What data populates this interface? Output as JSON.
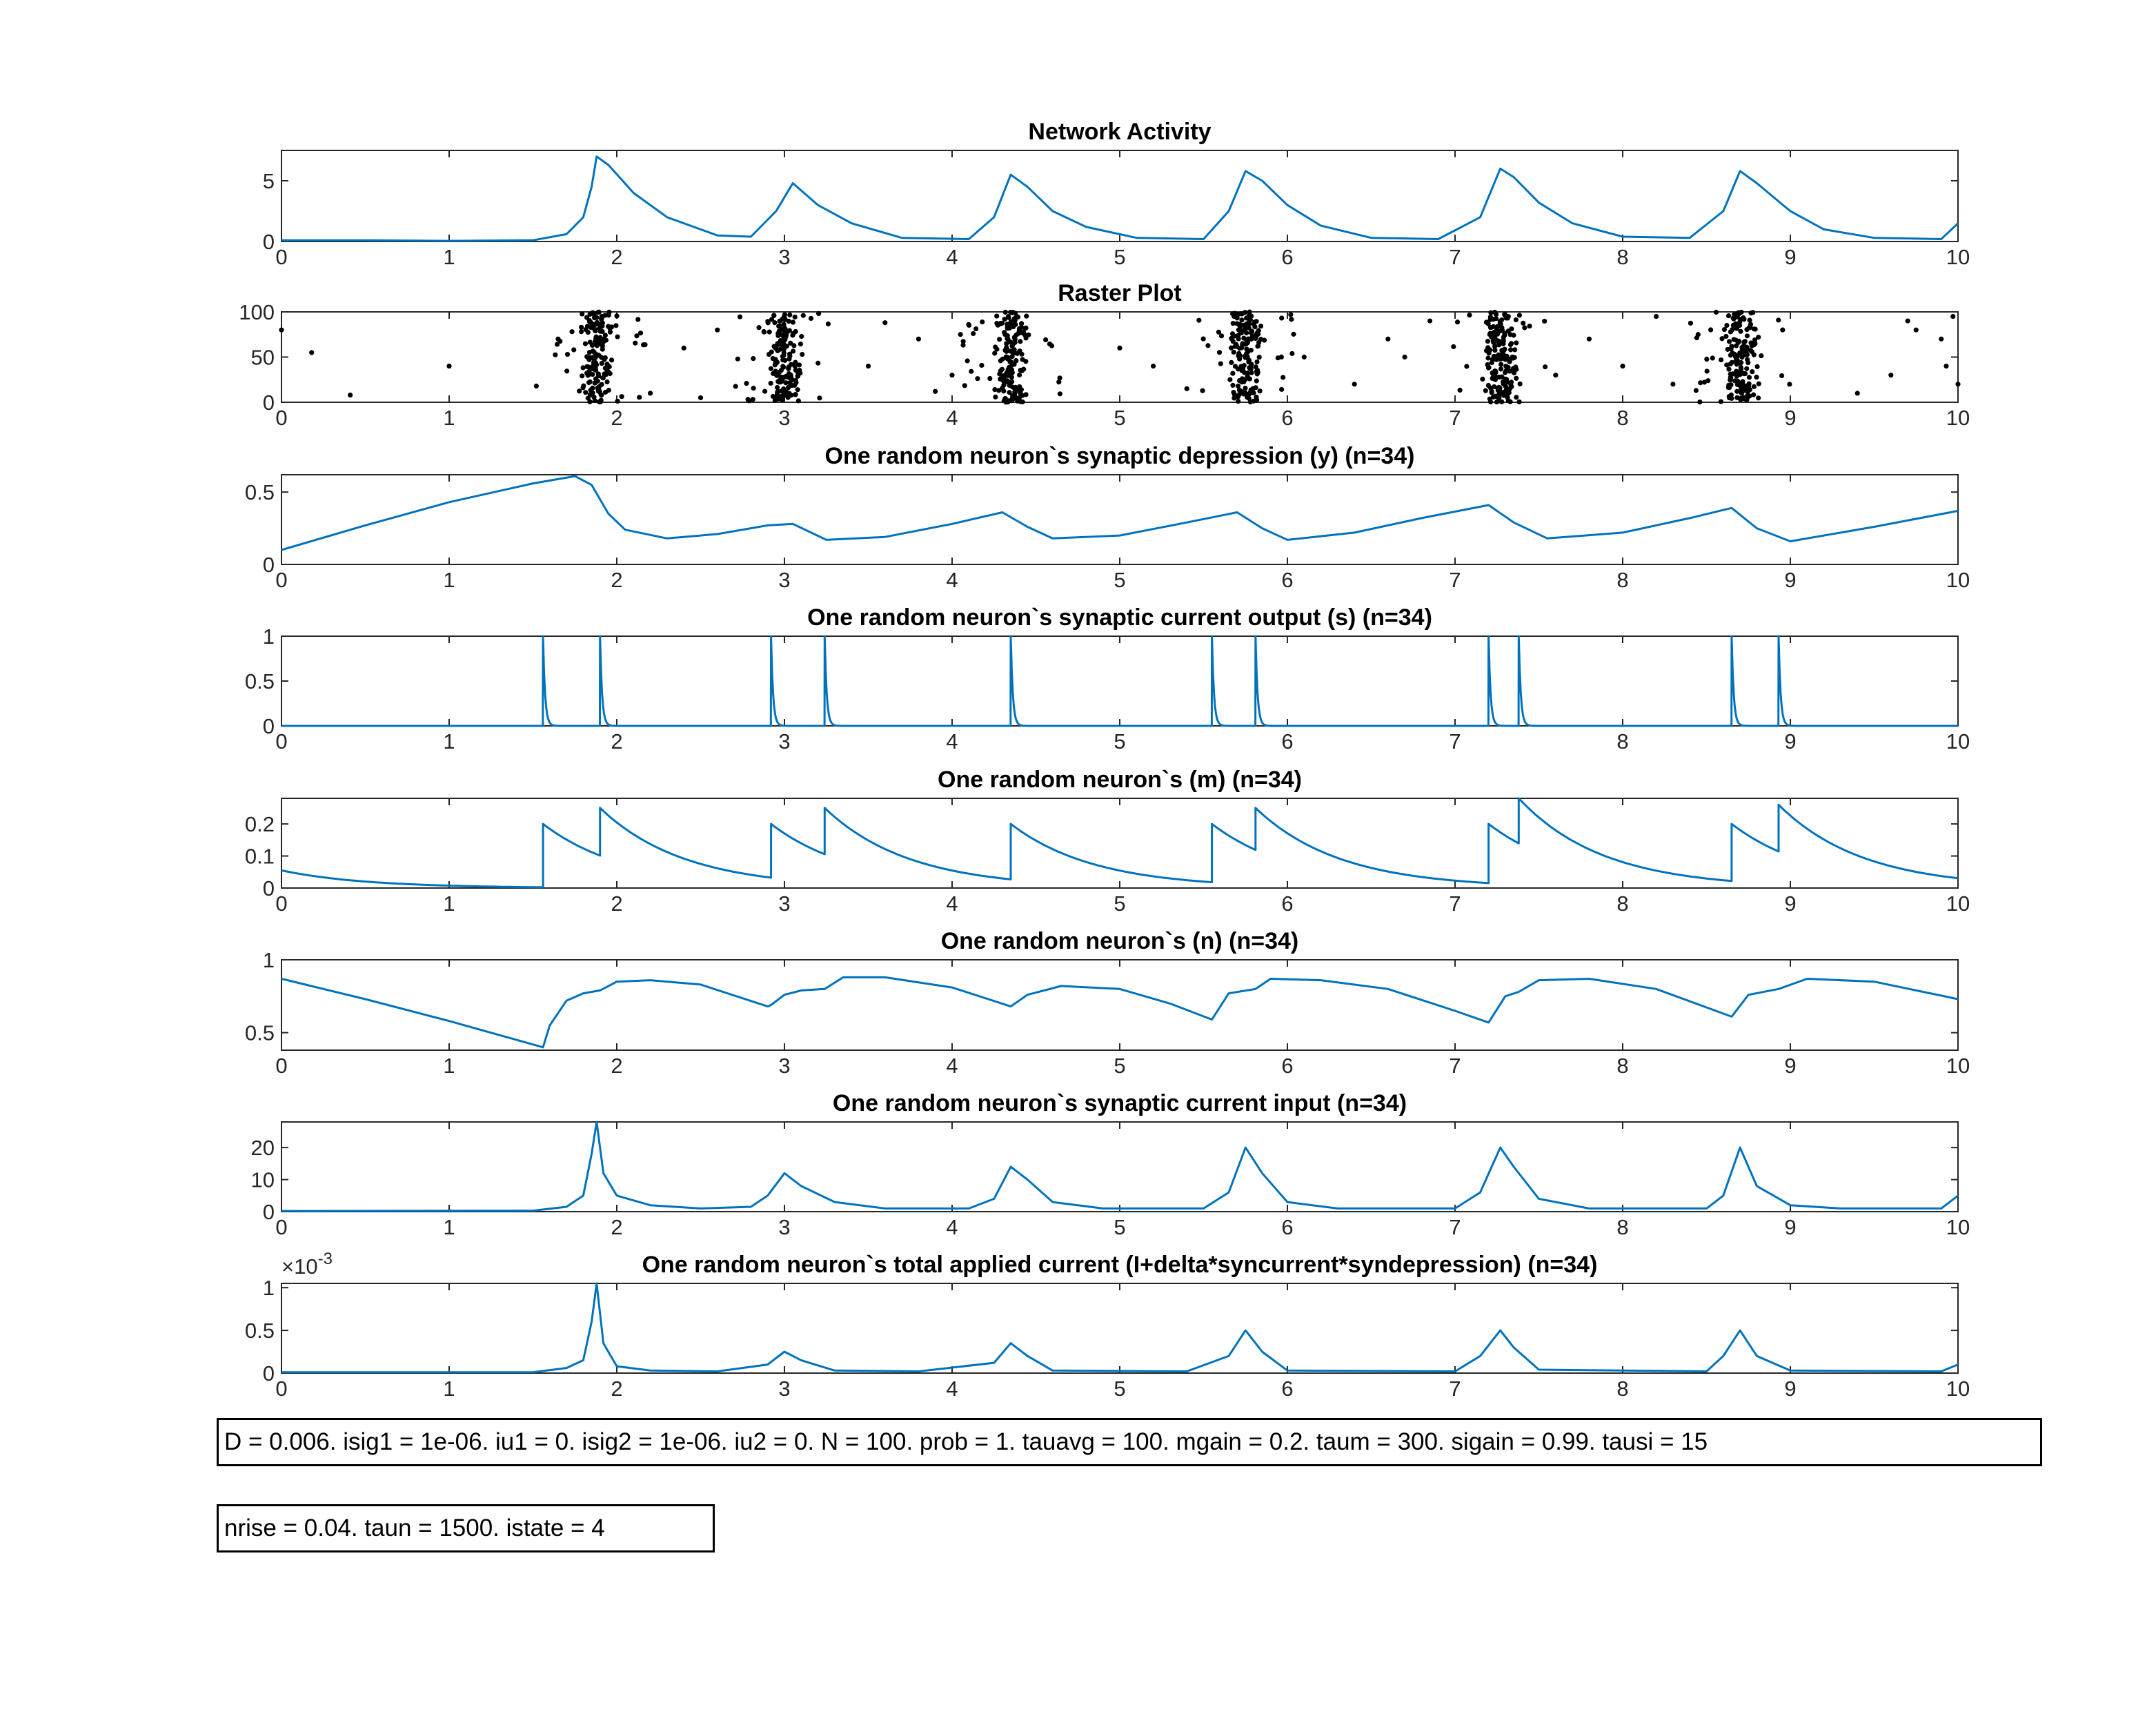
{
  "chart_data": [
    {
      "type": "line",
      "title": "Network Activity",
      "xlim": [
        0,
        10
      ],
      "ylim": [
        0,
        7.5
      ],
      "xticks": [
        "0",
        "1",
        "2",
        "3",
        "4",
        "5",
        "6",
        "7",
        "8",
        "9",
        "10"
      ],
      "yticks": [
        {
          "v": 0,
          "label": "0"
        },
        {
          "v": 5,
          "label": "5"
        }
      ],
      "color": "#0072bd",
      "x": [
        0,
        0.5,
        1,
        1.5,
        1.7,
        1.8,
        1.85,
        1.88,
        1.95,
        2.1,
        2.3,
        2.6,
        2.8,
        2.95,
        3.05,
        3.2,
        3.4,
        3.7,
        4.1,
        4.25,
        4.35,
        4.45,
        4.6,
        4.8,
        5.1,
        5.5,
        5.65,
        5.75,
        5.85,
        6.0,
        6.2,
        6.5,
        6.9,
        7.15,
        7.27,
        7.35,
        7.5,
        7.7,
        8.0,
        8.4,
        8.6,
        8.7,
        8.8,
        9.0,
        9.2,
        9.5,
        9.9,
        10
      ],
      "y": [
        0.1,
        0.1,
        0.05,
        0.1,
        0.6,
        2.0,
        4.5,
        7.0,
        6.3,
        4.0,
        2.0,
        0.5,
        0.4,
        2.5,
        4.8,
        3.0,
        1.5,
        0.3,
        0.2,
        2.0,
        5.5,
        4.5,
        2.5,
        1.2,
        0.3,
        0.2,
        2.5,
        5.8,
        5.0,
        3.0,
        1.3,
        0.3,
        0.2,
        2.0,
        6.0,
        5.3,
        3.2,
        1.5,
        0.4,
        0.3,
        2.5,
        5.8,
        4.8,
        2.5,
        1.0,
        0.3,
        0.2,
        1.5
      ]
    },
    {
      "type": "scatter",
      "title": "Raster Plot",
      "xlim": [
        0,
        10
      ],
      "ylim": [
        0,
        100
      ],
      "xticks": [
        "0",
        "1",
        "2",
        "3",
        "4",
        "5",
        "6",
        "7",
        "8",
        "9",
        "10"
      ],
      "yticks": [
        {
          "v": 0,
          "label": "0"
        },
        {
          "v": 50,
          "label": "50"
        },
        {
          "v": 100,
          "label": "100"
        }
      ],
      "color": "#000000",
      "bursts": [
        1.88,
        3.0,
        4.35,
        5.75,
        7.27,
        8.7
      ],
      "sparse_points": [
        [
          0.0,
          80
        ],
        [
          0.18,
          55
        ],
        [
          0.41,
          8
        ],
        [
          1.0,
          40
        ],
        [
          1.52,
          18
        ],
        [
          2.2,
          10
        ],
        [
          2.4,
          60
        ],
        [
          2.5,
          5
        ],
        [
          2.6,
          80
        ],
        [
          3.5,
          40
        ],
        [
          3.6,
          88
        ],
        [
          3.8,
          70
        ],
        [
          3.9,
          12
        ],
        [
          4.0,
          30
        ],
        [
          4.05,
          75
        ],
        [
          5.0,
          60
        ],
        [
          5.2,
          40
        ],
        [
          5.4,
          15
        ],
        [
          6.1,
          50
        ],
        [
          6.4,
          20
        ],
        [
          6.6,
          70
        ],
        [
          6.7,
          50
        ],
        [
          6.85,
          90
        ],
        [
          7.6,
          30
        ],
        [
          7.8,
          70
        ],
        [
          8.0,
          40
        ],
        [
          8.3,
          20
        ],
        [
          8.45,
          75
        ],
        [
          9.4,
          10
        ],
        [
          9.6,
          30
        ],
        [
          9.7,
          90
        ],
        [
          9.75,
          80
        ],
        [
          9.9,
          70
        ],
        [
          9.93,
          40
        ],
        [
          9.97,
          95
        ],
        [
          10.0,
          20
        ],
        [
          8.2,
          95
        ],
        [
          1.65,
          70
        ]
      ]
    },
    {
      "type": "line",
      "title": "One random neuron`s synaptic depression (y) (n=34)",
      "xlim": [
        0,
        10
      ],
      "ylim": [
        0,
        0.62
      ],
      "xticks": [
        "0",
        "1",
        "2",
        "3",
        "4",
        "5",
        "6",
        "7",
        "8",
        "9",
        "10"
      ],
      "yticks": [
        {
          "v": 0,
          "label": "0"
        },
        {
          "v": 0.5,
          "label": "0.5"
        }
      ],
      "color": "#0072bd",
      "x": [
        0,
        0.5,
        1.0,
        1.5,
        1.75,
        1.85,
        1.95,
        2.05,
        2.3,
        2.6,
        2.9,
        3.05,
        3.25,
        3.6,
        4.0,
        4.3,
        4.45,
        4.6,
        5.0,
        5.4,
        5.7,
        5.85,
        6.0,
        6.4,
        6.8,
        7.2,
        7.35,
        7.55,
        8.0,
        8.4,
        8.65,
        8.8,
        9.0,
        9.5,
        10.0
      ],
      "y": [
        0.1,
        0.27,
        0.43,
        0.56,
        0.61,
        0.55,
        0.35,
        0.24,
        0.18,
        0.21,
        0.27,
        0.28,
        0.17,
        0.19,
        0.28,
        0.36,
        0.26,
        0.18,
        0.2,
        0.29,
        0.36,
        0.25,
        0.17,
        0.22,
        0.32,
        0.41,
        0.29,
        0.18,
        0.22,
        0.32,
        0.39,
        0.25,
        0.16,
        0.26,
        0.37
      ]
    },
    {
      "type": "line",
      "title": "One random neuron`s synaptic current output (s) (n=34)",
      "xlim": [
        0,
        10
      ],
      "ylim": [
        0,
        1
      ],
      "xticks": [
        "0",
        "1",
        "2",
        "3",
        "4",
        "5",
        "6",
        "7",
        "8",
        "9",
        "10"
      ],
      "yticks": [
        {
          "v": 0,
          "label": "0"
        },
        {
          "v": 0.5,
          "label": "0.5"
        },
        {
          "v": 1,
          "label": "1"
        }
      ],
      "color": "#0072bd",
      "spikes": [
        1.56,
        1.9,
        2.92,
        3.24,
        4.35,
        5.55,
        5.81,
        7.2,
        7.38,
        8.65,
        8.93
      ]
    },
    {
      "type": "line",
      "title": "One random neuron`s (m) (n=34)",
      "xlim": [
        0,
        10
      ],
      "ylim": [
        0,
        0.28
      ],
      "xticks": [
        "0",
        "1",
        "2",
        "3",
        "4",
        "5",
        "6",
        "7",
        "8",
        "9",
        "10"
      ],
      "yticks": [
        {
          "v": 0,
          "label": "0"
        },
        {
          "v": 0.1,
          "label": "0.1"
        },
        {
          "v": 0.2,
          "label": "0.2"
        }
      ],
      "color": "#0072bd",
      "initial": 0.055,
      "jumps": [
        [
          1.56,
          0.2
        ],
        [
          1.9,
          0.25
        ],
        [
          2.92,
          0.2
        ],
        [
          3.24,
          0.25
        ],
        [
          4.35,
          0.2
        ],
        [
          5.55,
          0.2
        ],
        [
          5.81,
          0.25
        ],
        [
          7.2,
          0.2
        ],
        [
          7.38,
          0.28
        ],
        [
          8.65,
          0.2
        ],
        [
          8.93,
          0.26
        ]
      ]
    },
    {
      "type": "line",
      "title": "One random neuron`s (n) (n=34)",
      "xlim": [
        0,
        10
      ],
      "ylim": [
        0.38,
        1.0
      ],
      "xticks": [
        "0",
        "1",
        "2",
        "3",
        "4",
        "5",
        "6",
        "7",
        "8",
        "9",
        "10"
      ],
      "yticks": [
        {
          "v": 0.5,
          "label": "0.5"
        },
        {
          "v": 1,
          "label": "1"
        }
      ],
      "color": "#0072bd",
      "x": [
        0,
        0.5,
        1.0,
        1.56,
        1.6,
        1.7,
        1.8,
        1.9,
        2.0,
        2.2,
        2.5,
        2.9,
        2.92,
        3.0,
        3.1,
        3.24,
        3.35,
        3.6,
        4.0,
        4.35,
        4.45,
        4.65,
        5.0,
        5.3,
        5.55,
        5.65,
        5.81,
        5.9,
        6.2,
        6.6,
        7.0,
        7.2,
        7.3,
        7.38,
        7.5,
        7.8,
        8.2,
        8.65,
        8.75,
        8.93,
        9.1,
        9.5,
        10.0
      ],
      "y": [
        0.87,
        0.73,
        0.58,
        0.4,
        0.55,
        0.72,
        0.77,
        0.79,
        0.85,
        0.86,
        0.83,
        0.68,
        0.69,
        0.76,
        0.79,
        0.8,
        0.88,
        0.88,
        0.81,
        0.68,
        0.76,
        0.82,
        0.8,
        0.7,
        0.59,
        0.77,
        0.8,
        0.87,
        0.86,
        0.8,
        0.65,
        0.57,
        0.75,
        0.78,
        0.86,
        0.87,
        0.8,
        0.61,
        0.76,
        0.8,
        0.87,
        0.85,
        0.73
      ]
    },
    {
      "type": "line",
      "title": "One random neuron`s synaptic current input (n=34)",
      "xlim": [
        0,
        10
      ],
      "ylim": [
        0,
        28
      ],
      "xticks": [
        "0",
        "1",
        "2",
        "3",
        "4",
        "5",
        "6",
        "7",
        "8",
        "9",
        "10"
      ],
      "yticks": [
        {
          "v": 0,
          "label": "0"
        },
        {
          "v": 10,
          "label": "10"
        },
        {
          "v": 20,
          "label": "20"
        }
      ],
      "color": "#0072bd",
      "x": [
        0,
        1.5,
        1.7,
        1.8,
        1.85,
        1.88,
        1.92,
        2.0,
        2.2,
        2.5,
        2.8,
        2.9,
        3.0,
        3.1,
        3.3,
        3.6,
        4.1,
        4.25,
        4.35,
        4.45,
        4.6,
        4.9,
        5.5,
        5.65,
        5.75,
        5.85,
        6.0,
        6.3,
        7.0,
        7.15,
        7.27,
        7.35,
        7.5,
        7.8,
        8.5,
        8.6,
        8.7,
        8.8,
        9.0,
        9.3,
        9.9,
        10
      ],
      "y": [
        0.2,
        0.3,
        1.5,
        5,
        18,
        28,
        12,
        5,
        2,
        1,
        1.5,
        5,
        12,
        8,
        3,
        1,
        1,
        4,
        14,
        10,
        3,
        1,
        1,
        6,
        20,
        12,
        3,
        1,
        1,
        6,
        20,
        14,
        4,
        1,
        1,
        5,
        20,
        8,
        2,
        1,
        1,
        5
      ]
    },
    {
      "type": "line",
      "title": "One random neuron`s total applied current (I+delta*syncurrent*syndepression) (n=34)",
      "xlim": [
        0,
        10
      ],
      "ylim": [
        0,
        1.05
      ],
      "y_exponent_label": "×10",
      "y_exponent": "-3",
      "xticks": [
        "0",
        "1",
        "2",
        "3",
        "4",
        "5",
        "6",
        "7",
        "8",
        "9",
        "10"
      ],
      "yticks": [
        {
          "v": 0,
          "label": "0"
        },
        {
          "v": 0.5,
          "label": "0.5"
        },
        {
          "v": 1,
          "label": "1"
        }
      ],
      "color": "#0072bd",
      "x": [
        0,
        1.5,
        1.7,
        1.8,
        1.85,
        1.88,
        1.92,
        2.0,
        2.2,
        2.6,
        2.9,
        3.0,
        3.1,
        3.3,
        3.8,
        4.25,
        4.35,
        4.45,
        4.6,
        5.4,
        5.65,
        5.75,
        5.85,
        6.0,
        7.0,
        7.15,
        7.27,
        7.35,
        7.5,
        8.5,
        8.6,
        8.7,
        8.8,
        9.0,
        9.9,
        10
      ],
      "y": [
        0.01,
        0.01,
        0.06,
        0.15,
        0.6,
        1.05,
        0.35,
        0.08,
        0.03,
        0.02,
        0.1,
        0.25,
        0.15,
        0.03,
        0.02,
        0.12,
        0.35,
        0.2,
        0.03,
        0.02,
        0.2,
        0.5,
        0.25,
        0.03,
        0.02,
        0.2,
        0.5,
        0.3,
        0.04,
        0.02,
        0.2,
        0.5,
        0.2,
        0.03,
        0.02,
        0.1
      ]
    }
  ],
  "params": {
    "line1": "D = 0.006. isig1 = 1e-06. iu1 = 0. isig2 = 1e-06. iu2 = 0. N = 100. prob = 1. tauavg = 100. mgain = 0.2. taum = 300. sigain = 0.99. tausi = 15",
    "line2": "nrise = 0.04. taun = 1500. istate = 4"
  }
}
